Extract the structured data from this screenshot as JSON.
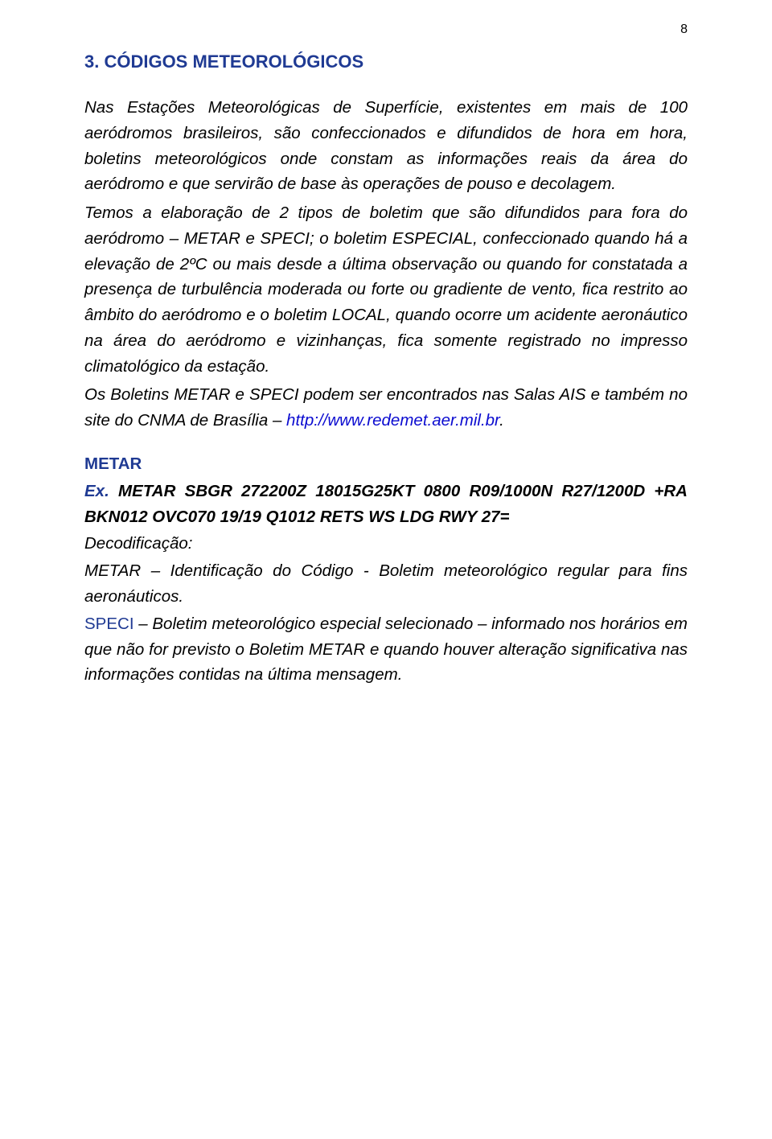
{
  "colors": {
    "text_black": "#000000",
    "link_blue": "#0b0bd0",
    "blue_accent": "#1f3a93",
    "background": "#ffffff"
  },
  "typography": {
    "body_fontsize_pt": 15,
    "title_fontsize_pt": 17,
    "line_height": 1.55,
    "font_family": "Arial"
  },
  "page_number": "8",
  "section": {
    "title": "3. CÓDIGOS METEOROLÓGICOS"
  },
  "paragraphs": {
    "p1": "Nas Estações Meteorológicas de Superfície, existentes em mais de 100 aeródromos brasileiros, são confeccionados e difundidos de hora em hora, boletins meteorológicos onde constam as informações reais da área do aeródromo e que servirão de base às operações de pouso e decolagem.",
    "p2": "Temos a elaboração de 2 tipos de boletim que são difundidos para fora do aeródromo – METAR e SPECI; o boletim ESPECIAL, confeccionado quando há a elevação de 2ºC ou mais desde a última observação ou quando for constatada a presença de turbulência moderada ou forte ou gradiente de vento, fica restrito ao âmbito do aeródromo e o boletim LOCAL, quando ocorre um acidente aeronáutico na área do aeródromo e vizinhanças, fica somente registrado no impresso climatológico da estação.",
    "p3_prefix": "Os Boletins METAR e SPECI podem ser encontrados nas Salas AIS e também no site do CNMA de Brasília – ",
    "p3_link": "http://www.redemet.aer.mil.br",
    "p3_suffix": "."
  },
  "metar": {
    "label": "METAR",
    "ex_label": "Ex.",
    "ex_body": " METAR SBGR 272200Z 18015G25KT 0800 R09/1000N R27/1200D +RA BKN012 OVC070 19/19 Q1012 RETS WS LDG RWY 27=",
    "decod_label": "Decodificação:",
    "metar_def": "METAR – Identificação do Código - Boletim meteorológico regular para fins aeronáuticos.",
    "speci_prefix": "SPECI",
    "speci_body": " – Boletim meteorológico especial selecionado – informado nos horários em que não for previsto o Boletim METAR e quando houver alteração significativa nas informações contidas na última mensagem."
  }
}
